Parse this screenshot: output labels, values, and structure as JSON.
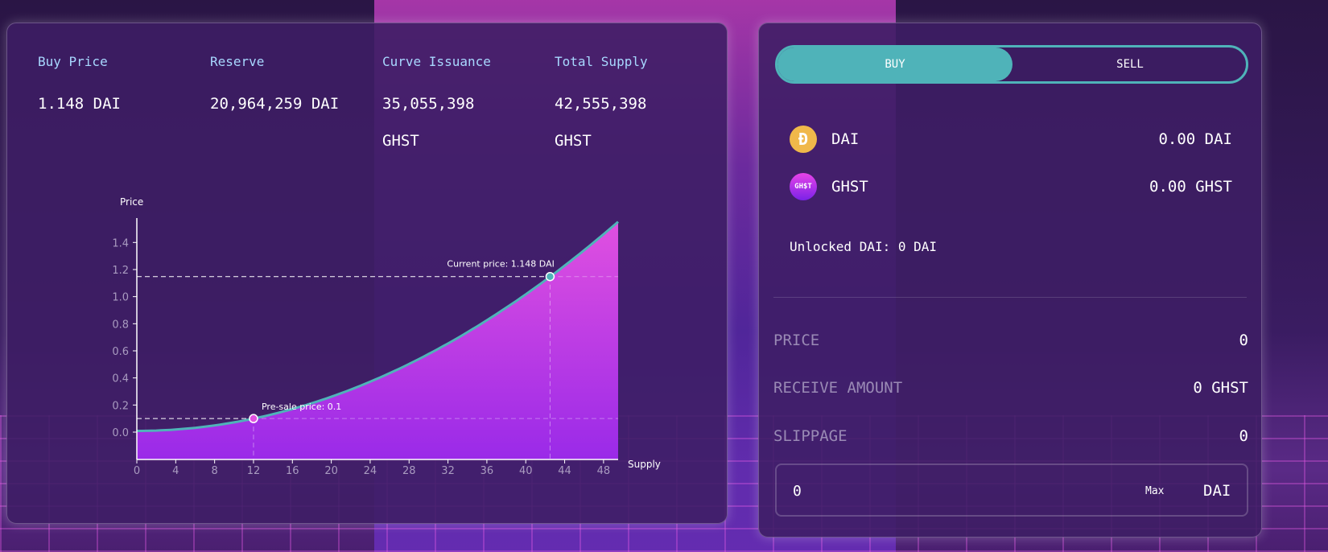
{
  "stats": [
    {
      "label": "Buy Price",
      "value": "1.148 DAI"
    },
    {
      "label": "Reserve",
      "value": "20,964,259 DAI"
    },
    {
      "label": "Curve Issuance",
      "value": "35,055,398 GHST"
    },
    {
      "label": "Total Supply",
      "value": "42,555,398 GHST"
    }
  ],
  "chart_data": {
    "type": "area",
    "xlabel": "Supply",
    "ylabel": "Price",
    "xlim": [
      0,
      49.5
    ],
    "ylim": [
      0,
      1.58
    ],
    "xticks": [
      0,
      4,
      8,
      12,
      16,
      20,
      24,
      28,
      32,
      36,
      40,
      44,
      48
    ],
    "yticks": [
      "0.0",
      "0.2",
      "0.4",
      "0.6",
      "0.8",
      "1.0",
      "1.2",
      "1.4"
    ],
    "curve": {
      "formula": "price = 0.00063*supply^2 + 0.009",
      "x": [
        0,
        4,
        8,
        12,
        16,
        20,
        24,
        28,
        32,
        36,
        40,
        42.5,
        44,
        48,
        49.5
      ],
      "y": [
        0.009,
        0.019,
        0.049,
        0.1,
        0.17,
        0.261,
        0.372,
        0.503,
        0.654,
        0.825,
        1.017,
        1.148,
        1.229,
        1.461,
        1.553
      ]
    },
    "annotations": [
      {
        "label": "Pre-sale price: 0.1",
        "x": 12,
        "y": 0.1,
        "color": "#e050e0"
      },
      {
        "label": "Current price: 1.148 DAI",
        "x": 42.5,
        "y": 1.148,
        "color": "#4fb3b9"
      }
    ],
    "colors": {
      "line": "#4fb3b9",
      "fill_top": "#e050e0",
      "fill_bottom": "#9a2ae8"
    }
  },
  "trade": {
    "buy_label": "BUY",
    "sell_label": "SELL",
    "tokens": [
      {
        "name": "DAI",
        "amount": "0.00 DAI",
        "icon": "dai-icon"
      },
      {
        "name": "GHST",
        "amount": "0.00 GHST",
        "icon": "ghst-icon",
        "icon_text": "GH$T"
      }
    ],
    "unlocked": "Unlocked DAI: 0 DAI",
    "rows": [
      {
        "label": "PRICE",
        "value": "0"
      },
      {
        "label": "RECEIVE AMOUNT",
        "value": "0 GHST"
      },
      {
        "label": "SLIPPAGE",
        "value": "0"
      }
    ],
    "input_value": "0",
    "max_label": "Max",
    "currency": "DAI"
  }
}
